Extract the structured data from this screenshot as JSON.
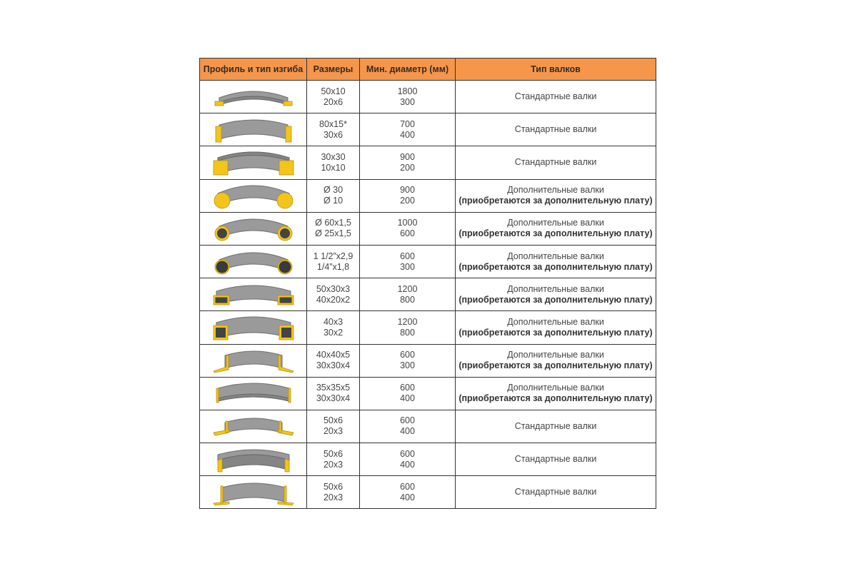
{
  "header": {
    "profile": "Профиль и тип изгиба",
    "sizes": "Размеры",
    "min_diameter": "Мин. диаметр (мм)",
    "roller_type": "Тип валков"
  },
  "rows": [
    {
      "profile_icon": "flat-bar-bend-icon",
      "sizes": [
        "50x10",
        "20x6"
      ],
      "min_diameter": [
        "1800",
        "300"
      ],
      "roller_type": "Стандартные валки",
      "roller_note": ""
    },
    {
      "profile_icon": "flat-bar-edgewise-bend-icon",
      "sizes": [
        "80x15*",
        "30x6"
      ],
      "min_diameter": [
        "700",
        "400"
      ],
      "roller_type": "Стандартные валки",
      "roller_note": ""
    },
    {
      "profile_icon": "square-bar-bend-icon",
      "sizes": [
        "30x30",
        "10x10"
      ],
      "min_diameter": [
        "900",
        "200"
      ],
      "roller_type": "Стандартные валки",
      "roller_note": ""
    },
    {
      "profile_icon": "round-bar-bend-icon",
      "sizes": [
        "Ø 30",
        "Ø 10"
      ],
      "min_diameter": [
        "900",
        "200"
      ],
      "roller_type": "Дополнительные валки",
      "roller_note": "(приобретаются за дополнительную плату)"
    },
    {
      "profile_icon": "round-tube-bend-icon",
      "sizes": [
        "Ø 60x1,5",
        "Ø 25x1,5"
      ],
      "min_diameter": [
        "1000",
        "600"
      ],
      "roller_type": "Дополнительные валки",
      "roller_note": "(приобретаются за дополнительную плату)"
    },
    {
      "profile_icon": "pipe-bend-icon",
      "sizes": [
        "1 1/2”x2,9",
        "1/4”x1,8"
      ],
      "min_diameter": [
        "600",
        "300"
      ],
      "roller_type": "Дополнительные валки",
      "roller_note": "(приобретаются за дополнительную плату)"
    },
    {
      "profile_icon": "rect-tube-bend-icon",
      "sizes": [
        "50x30x3",
        "40x20x2"
      ],
      "min_diameter": [
        "1200",
        "800"
      ],
      "roller_type": "Дополнительные валки",
      "roller_note": "(приобретаются за дополнительную плату)"
    },
    {
      "profile_icon": "square-tube-bend-icon",
      "sizes": [
        "40x3",
        "30x2"
      ],
      "min_diameter": [
        "1200",
        "800"
      ],
      "roller_type": "Дополнительные валки",
      "roller_note": "(приобретаются за дополнительную плату)"
    },
    {
      "profile_icon": "angle-out-bend-icon",
      "sizes": [
        "40x40x5",
        "30x30x4"
      ],
      "min_diameter": [
        "600",
        "300"
      ],
      "roller_type": "Дополнительные валки",
      "roller_note": "(приобретаются за дополнительную плату)"
    },
    {
      "profile_icon": "angle-in-bend-icon",
      "sizes": [
        "35x35x5",
        "30x30x4"
      ],
      "min_diameter": [
        "600",
        "400"
      ],
      "roller_type": "Дополнительные валки",
      "roller_note": "(приобретаются за дополнительную плату)"
    },
    {
      "profile_icon": "tee-out-bend-icon",
      "sizes": [
        "50x6",
        "20x3"
      ],
      "min_diameter": [
        "600",
        "400"
      ],
      "roller_type": "Стандартные валки",
      "roller_note": ""
    },
    {
      "profile_icon": "tee-in-bend-icon",
      "sizes": [
        "50x6",
        "20x3"
      ],
      "min_diameter": [
        "600",
        "400"
      ],
      "roller_type": "Стандартные валки",
      "roller_note": ""
    },
    {
      "profile_icon": "tee-flange-bend-icon",
      "sizes": [
        "50x6",
        "20x3"
      ],
      "min_diameter": [
        "600",
        "400"
      ],
      "roller_type": "Стандартные валки",
      "roller_note": ""
    }
  ],
  "colors": {
    "header_bg": "#f5964a",
    "profile_yellow": "#f3c51a",
    "profile_grey": "#9a9a9a"
  }
}
